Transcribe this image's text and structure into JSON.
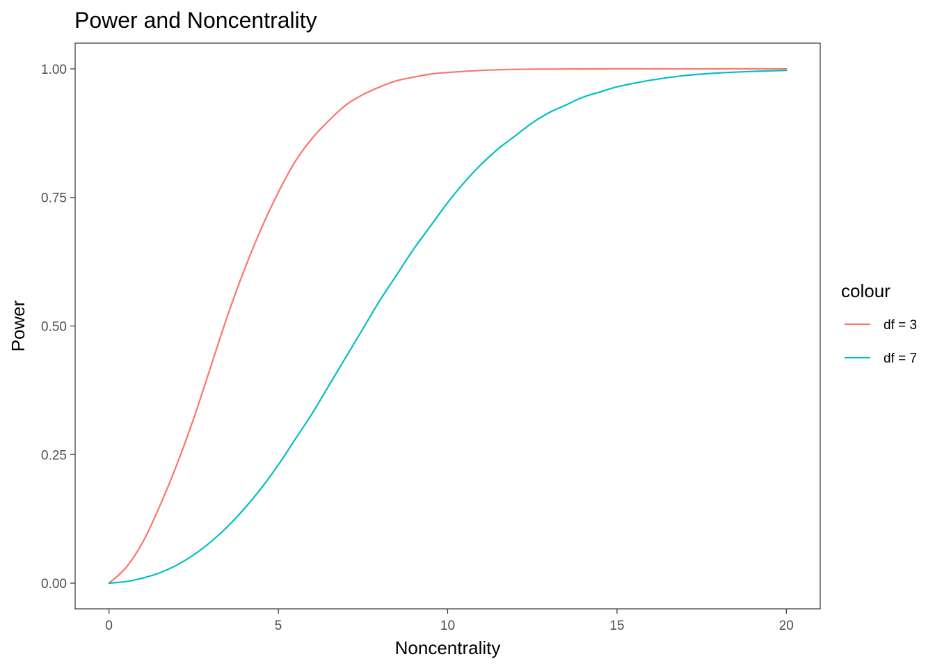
{
  "chart_data": {
    "type": "line",
    "title": "Power and Noncentrality",
    "xlabel": "Noncentrality",
    "ylabel": "Power",
    "xlim": [
      -1,
      21
    ],
    "ylim": [
      -0.05,
      1.05
    ],
    "x_ticks": [
      0,
      5,
      10,
      15,
      20
    ],
    "x_tick_labels": [
      "0",
      "5",
      "10",
      "15",
      "20"
    ],
    "y_ticks": [
      0,
      0.25,
      0.5,
      0.75,
      1
    ],
    "y_tick_labels": [
      "0.00",
      "0.25",
      "0.50",
      "0.75",
      "1.00"
    ],
    "grid": false,
    "legend": {
      "title": "colour",
      "position": "right"
    },
    "series": [
      {
        "name": "df = 3",
        "color": "#F8766D",
        "x": [
          0,
          0.5,
          1,
          1.5,
          2,
          2.5,
          3,
          3.5,
          4,
          4.5,
          5,
          5.5,
          6,
          6.5,
          7,
          7.5,
          8,
          8.5,
          9,
          9.5,
          10,
          11,
          12,
          13,
          14,
          15,
          16,
          17,
          18,
          19,
          20
        ],
        "values": [
          0,
          0.03,
          0.08,
          0.15,
          0.23,
          0.32,
          0.42,
          0.52,
          0.61,
          0.69,
          0.76,
          0.82,
          0.865,
          0.9,
          0.93,
          0.95,
          0.965,
          0.977,
          0.984,
          0.99,
          0.993,
          0.997,
          0.999,
          0.9995,
          0.9998,
          1.0,
          1.0,
          1.0,
          1.0,
          1.0,
          1.0
        ]
      },
      {
        "name": "df = 7",
        "color": "#00BFC4",
        "x": [
          0,
          0.5,
          1,
          1.5,
          2,
          2.5,
          3,
          3.5,
          4,
          4.5,
          5,
          5.5,
          6,
          6.5,
          7,
          7.5,
          8,
          8.5,
          9,
          9.5,
          10,
          10.5,
          11,
          11.5,
          12,
          12.5,
          13,
          13.5,
          14,
          14.5,
          15,
          16,
          17,
          18,
          19,
          20
        ],
        "values": [
          0,
          0.003,
          0.01,
          0.02,
          0.035,
          0.055,
          0.08,
          0.11,
          0.145,
          0.185,
          0.23,
          0.28,
          0.33,
          0.385,
          0.44,
          0.495,
          0.55,
          0.6,
          0.65,
          0.695,
          0.74,
          0.78,
          0.815,
          0.845,
          0.87,
          0.895,
          0.915,
          0.93,
          0.945,
          0.955,
          0.965,
          0.978,
          0.987,
          0.992,
          0.995,
          0.997
        ]
      }
    ]
  }
}
